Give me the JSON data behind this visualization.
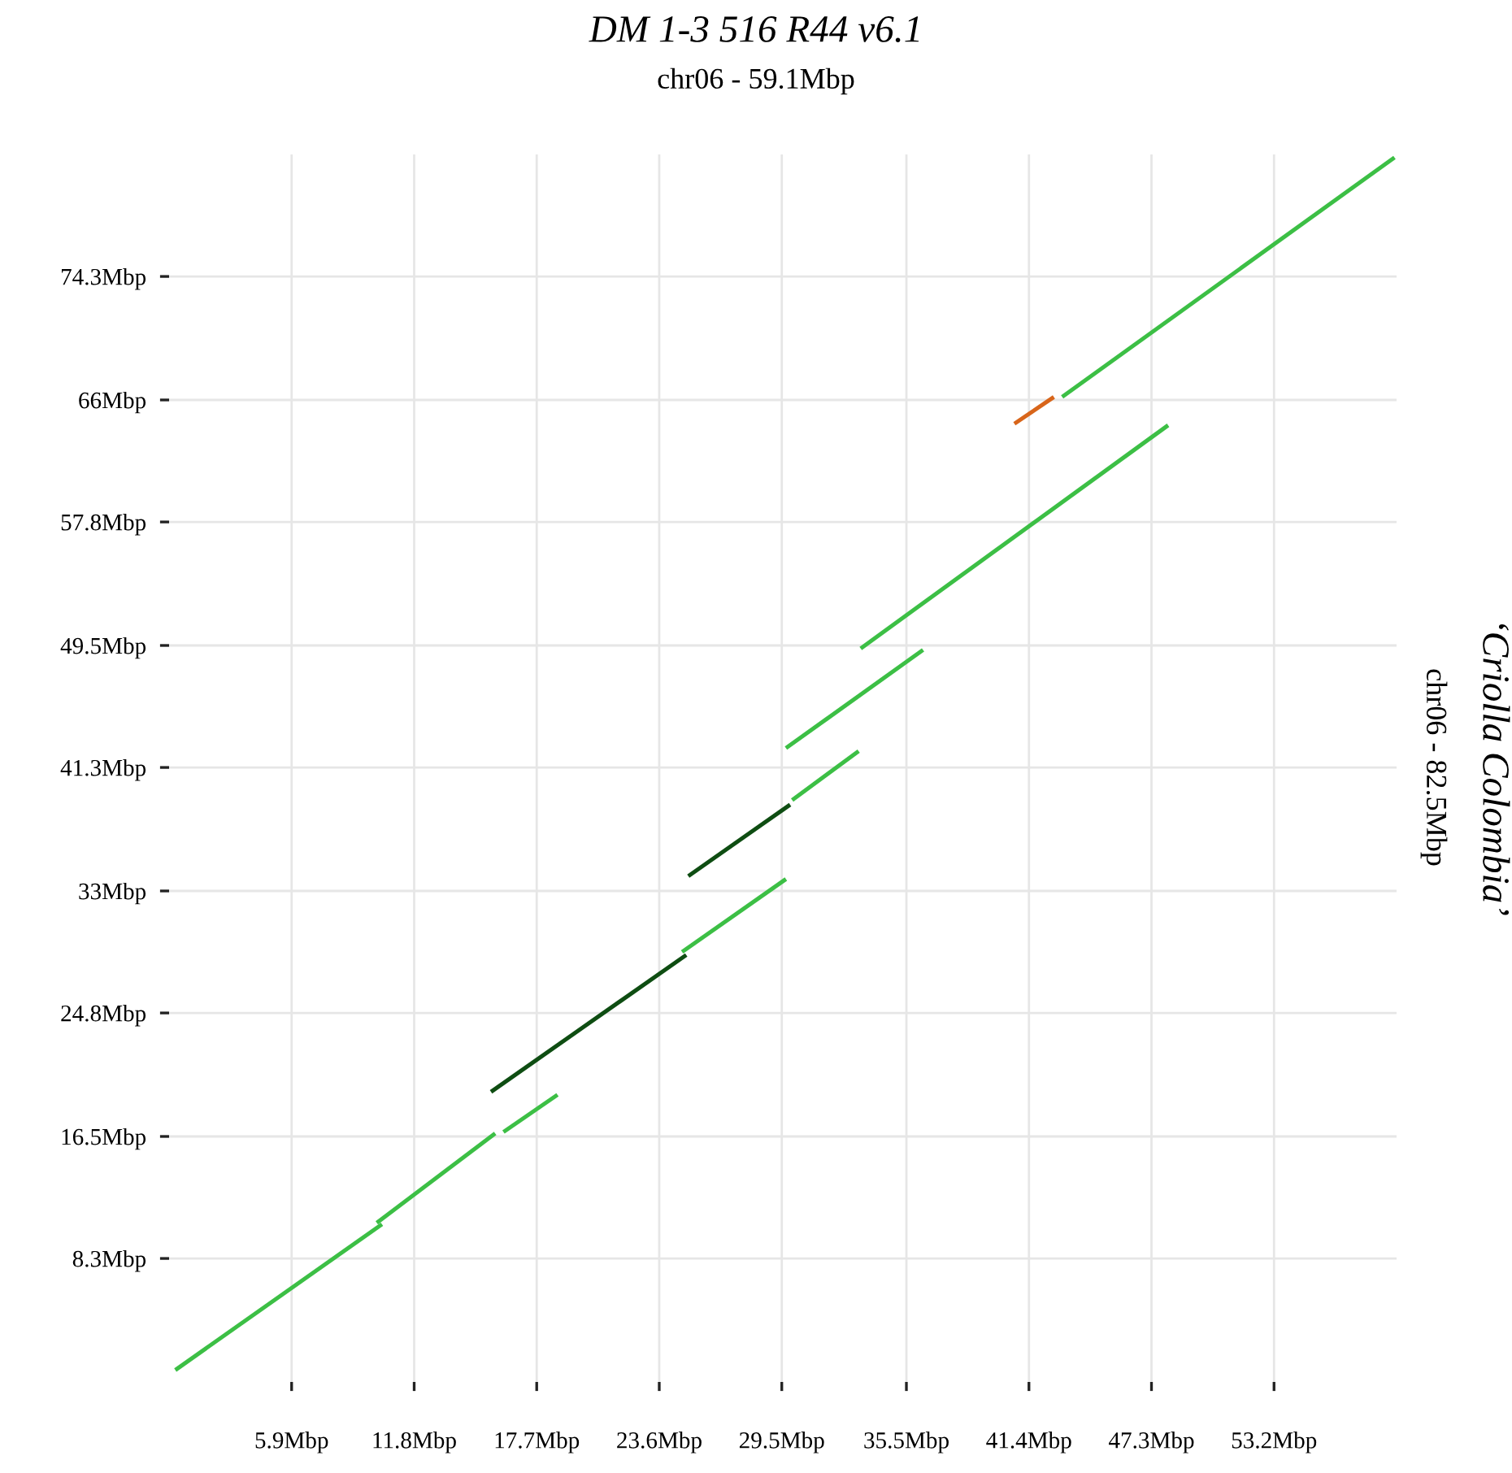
{
  "chart_data": {
    "type": "line",
    "title": "DM 1-3 516 R44 v6.1",
    "subtitle": "chr06 - 59.1Mbp",
    "ylabel": "‘Criolla Colombia’\nchr06 - 82.5Mbp",
    "xlim": [
      0,
      59.1
    ],
    "ylim": [
      0,
      82.5
    ],
    "xticks": [
      {
        "value": 5.9,
        "label": "5.9Mbp"
      },
      {
        "value": 11.8,
        "label": "11.8Mbp"
      },
      {
        "value": 17.7,
        "label": "17.7Mbp"
      },
      {
        "value": 23.6,
        "label": "23.6Mbp"
      },
      {
        "value": 29.5,
        "label": "29.5Mbp"
      },
      {
        "value": 35.5,
        "label": "35.5Mbp"
      },
      {
        "value": 41.4,
        "label": "41.4Mbp"
      },
      {
        "value": 47.3,
        "label": "47.3Mbp"
      },
      {
        "value": 53.2,
        "label": "53.2Mbp"
      }
    ],
    "yticks": [
      {
        "value": 8.3,
        "label": "8.3Mbp"
      },
      {
        "value": 16.5,
        "label": "16.5Mbp"
      },
      {
        "value": 24.8,
        "label": "24.8Mbp"
      },
      {
        "value": 33,
        "label": "33Mbp"
      },
      {
        "value": 41.3,
        "label": "41.3Mbp"
      },
      {
        "value": 49.5,
        "label": "49.5Mbp"
      },
      {
        "value": 57.8,
        "label": "57.8Mbp"
      },
      {
        "value": 66,
        "label": "66Mbp"
      },
      {
        "value": 74.3,
        "label": "74.3Mbp"
      }
    ],
    "grid": true,
    "marker": "none",
    "line_style": "solid",
    "series": [
      {
        "color": "#3cbf45",
        "x": [
          0.3,
          10.25
        ],
        "values": [
          0.8,
          10.6
        ]
      },
      {
        "color": "#3cbf45",
        "x": [
          10.0,
          15.7
        ],
        "values": [
          10.7,
          16.7
        ]
      },
      {
        "color": "#3cbf45",
        "x": [
          16.1,
          18.7
        ],
        "values": [
          16.8,
          19.3
        ]
      },
      {
        "color": "#0e4d12",
        "x": [
          15.5,
          24.9
        ],
        "values": [
          19.5,
          28.7
        ]
      },
      {
        "color": "#3cbf45",
        "x": [
          24.7,
          29.7
        ],
        "values": [
          28.9,
          33.8
        ]
      },
      {
        "color": "#0e4d12",
        "x": [
          25.0,
          29.9
        ],
        "values": [
          34.0,
          38.8
        ]
      },
      {
        "color": "#3cbf45",
        "x": [
          30.0,
          33.2
        ],
        "values": [
          39.1,
          42.4
        ]
      },
      {
        "color": "#3cbf45",
        "x": [
          29.7,
          36.3
        ],
        "values": [
          42.6,
          49.2
        ]
      },
      {
        "color": "#3cbf45",
        "x": [
          33.3,
          48.1
        ],
        "values": [
          49.3,
          64.3
        ]
      },
      {
        "color": "#d8651a",
        "x": [
          40.7,
          42.6
        ],
        "values": [
          64.4,
          66.2
        ]
      },
      {
        "color": "#3cbf45",
        "x": [
          43.0,
          59.0
        ],
        "values": [
          66.2,
          82.3
        ]
      }
    ]
  }
}
